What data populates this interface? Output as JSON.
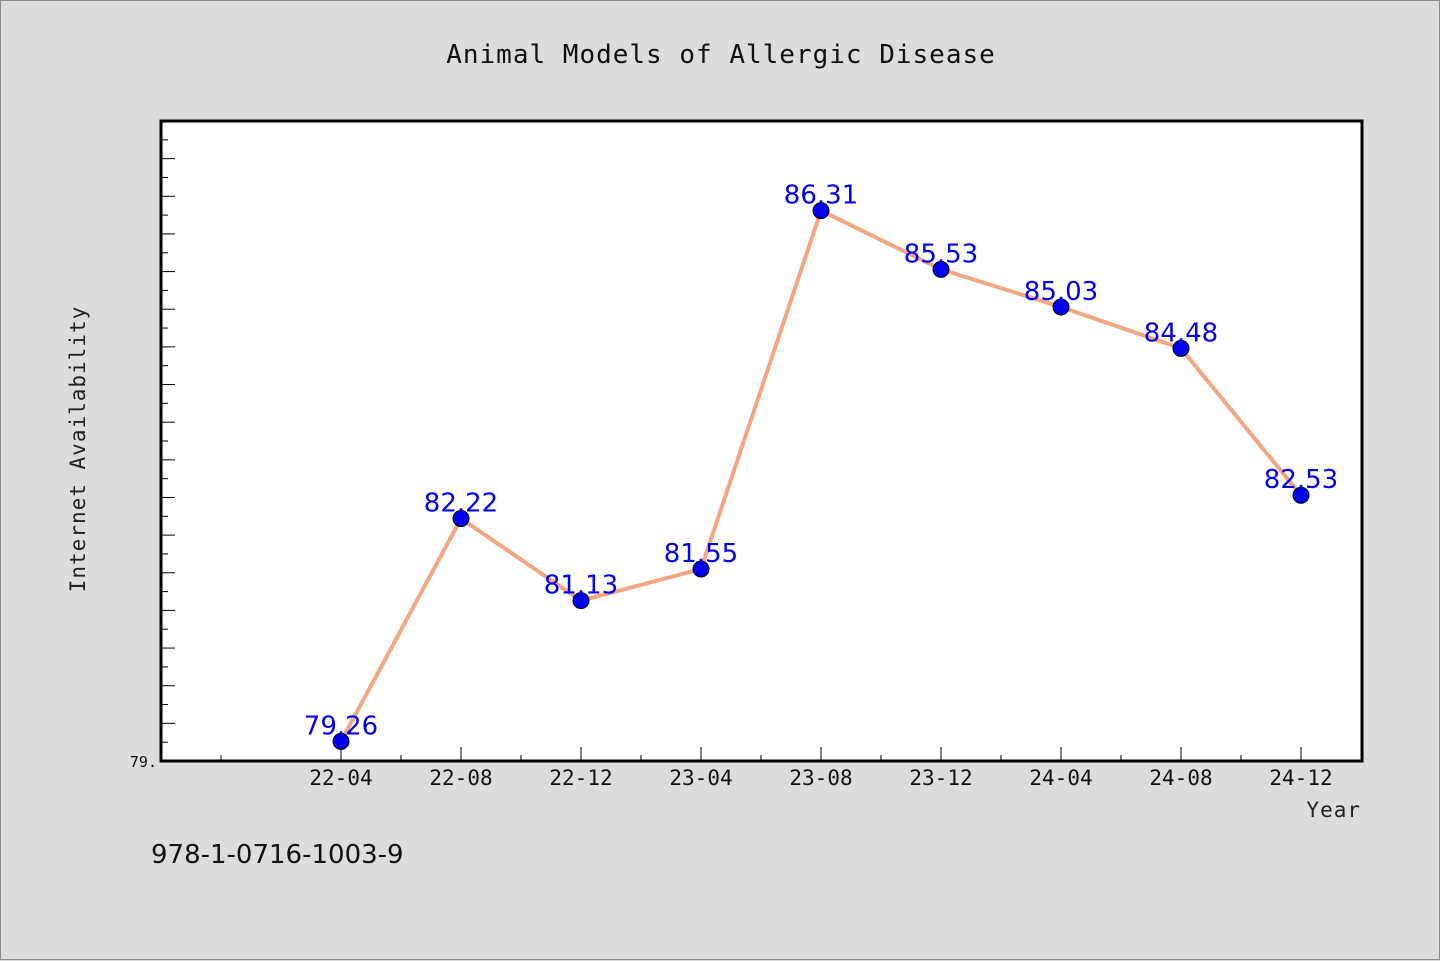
{
  "chart_data": {
    "type": "line",
    "title": "Animal Models of Allergic Disease",
    "xlabel": "Year",
    "ylabel": "Internet Availability",
    "categories": [
      "22-04",
      "22-08",
      "22-12",
      "23-04",
      "23-08",
      "23-12",
      "24-04",
      "24-08",
      "24-12"
    ],
    "series": [
      {
        "values": [
          79.26,
          82.22,
          81.13,
          81.55,
          86.31,
          85.53,
          85.03,
          84.48,
          82.53
        ],
        "labels": [
          "79.26",
          "82.22",
          "81.13",
          "81.55",
          "86.31",
          "85.53",
          "85.03",
          "84.48",
          "82.53"
        ],
        "line_color": "#f4a582",
        "marker_color": "#0000ee"
      }
    ],
    "ylim": [
      79.0,
      87.5
    ],
    "y_min_label": "79.",
    "grid": false,
    "legend": "none"
  },
  "footer": {
    "isbn": "978-1-0716-1003-9"
  },
  "colors": {
    "background": "#dcdcdc",
    "plot_background": "#ffffff",
    "axis": "#000000",
    "data_label": "#0000ee"
  }
}
